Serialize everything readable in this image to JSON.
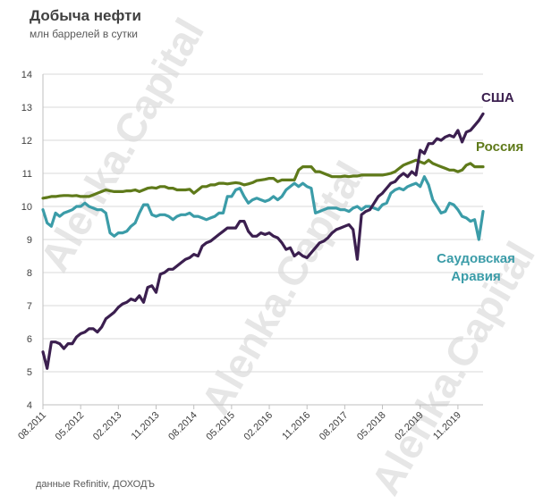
{
  "header": {
    "title": "Добыча нефти",
    "subtitle": "млн баррелей в сутки"
  },
  "footer": {
    "source": "данные Refinitiv, ДОХОДЪ"
  },
  "watermark_text": "Alenka.Capital",
  "chart_data": {
    "type": "line",
    "title": "Добыча нефти",
    "subtitle": "млн баррелей в сутки",
    "xlabel": "",
    "ylabel": "",
    "ylim": [
      4,
      14
    ],
    "yticks": [
      4,
      5,
      6,
      7,
      8,
      9,
      10,
      11,
      12,
      13,
      14
    ],
    "xlim_months": [
      "08.2011",
      "11.2019"
    ],
    "xtick_labels": [
      "08.2011",
      "05.2012",
      "02.2013",
      "11.2013",
      "08.2014",
      "05.2015",
      "02.2016",
      "11.2016",
      "08.2017",
      "05.2018",
      "02.2019",
      "11.2019"
    ],
    "grid": "horizontal",
    "legend": "inline labels at right",
    "series": [
      {
        "name": "США",
        "color": "#3b1f4f",
        "values": [
          5.6,
          5.1,
          5.9,
          5.9,
          5.85,
          5.7,
          5.85,
          5.85,
          6.05,
          6.15,
          6.2,
          6.3,
          6.3,
          6.2,
          6.35,
          6.6,
          6.7,
          6.8,
          6.95,
          7.05,
          7.1,
          7.2,
          7.15,
          7.3,
          7.1,
          7.55,
          7.6,
          7.4,
          7.95,
          8.0,
          8.1,
          8.1,
          8.2,
          8.3,
          8.4,
          8.45,
          8.55,
          8.5,
          8.8,
          8.9,
          8.95,
          9.05,
          9.15,
          9.25,
          9.35,
          9.35,
          9.35,
          9.55,
          9.55,
          9.25,
          9.1,
          9.1,
          9.2,
          9.15,
          9.2,
          9.1,
          9.05,
          8.9,
          8.7,
          8.75,
          8.5,
          8.6,
          8.5,
          8.45,
          8.6,
          8.75,
          8.9,
          8.95,
          9.05,
          9.2,
          9.3,
          9.35,
          9.4,
          9.45,
          9.3,
          8.4,
          9.75,
          9.85,
          9.9,
          10.1,
          10.3,
          10.4,
          10.55,
          10.7,
          10.75,
          10.9,
          11.0,
          10.9,
          11.05,
          10.95,
          11.7,
          11.6,
          11.9,
          11.9,
          12.05,
          12.0,
          12.1,
          12.15,
          12.1,
          12.3,
          11.95,
          12.25,
          12.3,
          12.45,
          12.6,
          12.8
        ]
      },
      {
        "name": "Россия",
        "color": "#5f7a1a",
        "values": [
          10.25,
          10.27,
          10.3,
          10.3,
          10.32,
          10.33,
          10.33,
          10.32,
          10.33,
          10.3,
          10.3,
          10.3,
          10.35,
          10.4,
          10.45,
          10.5,
          10.47,
          10.45,
          10.45,
          10.45,
          10.47,
          10.47,
          10.5,
          10.45,
          10.5,
          10.55,
          10.57,
          10.55,
          10.6,
          10.6,
          10.55,
          10.55,
          10.5,
          10.5,
          10.5,
          10.52,
          10.4,
          10.5,
          10.6,
          10.6,
          10.65,
          10.65,
          10.7,
          10.7,
          10.68,
          10.7,
          10.72,
          10.7,
          10.65,
          10.68,
          10.72,
          10.78,
          10.8,
          10.82,
          10.85,
          10.85,
          10.75,
          10.8,
          10.8,
          10.8,
          10.8,
          11.1,
          11.2,
          11.2,
          11.2,
          11.05,
          11.05,
          11.0,
          10.95,
          10.9,
          10.9,
          10.9,
          10.92,
          10.9,
          10.92,
          10.92,
          10.95,
          10.95,
          10.95,
          10.95,
          10.95,
          10.95,
          10.97,
          11.0,
          11.05,
          11.15,
          11.25,
          11.3,
          11.35,
          11.4,
          11.35,
          11.3,
          11.4,
          11.3,
          11.25,
          11.2,
          11.15,
          11.1,
          11.1,
          11.05,
          11.1,
          11.25,
          11.3,
          11.2,
          11.2,
          11.2
        ]
      },
      {
        "name": "Саудовская Аравия",
        "color": "#3b9ca8",
        "values": [
          9.9,
          9.5,
          9.4,
          9.8,
          9.7,
          9.8,
          9.85,
          9.9,
          10.0,
          10.0,
          10.1,
          10.0,
          9.95,
          9.9,
          9.9,
          9.8,
          9.2,
          9.1,
          9.2,
          9.2,
          9.25,
          9.4,
          9.5,
          9.8,
          10.05,
          10.05,
          9.75,
          9.7,
          9.75,
          9.75,
          9.7,
          9.6,
          9.7,
          9.75,
          9.75,
          9.8,
          9.7,
          9.7,
          9.65,
          9.6,
          9.65,
          9.7,
          9.8,
          9.8,
          10.3,
          10.3,
          10.5,
          10.55,
          10.3,
          10.1,
          10.2,
          10.25,
          10.2,
          10.15,
          10.2,
          10.3,
          10.2,
          10.3,
          10.5,
          10.6,
          10.7,
          10.6,
          10.7,
          10.6,
          10.55,
          9.8,
          9.85,
          9.9,
          9.95,
          9.95,
          9.95,
          9.9,
          9.9,
          9.85,
          9.95,
          10.0,
          9.9,
          10.0,
          10.0,
          9.95,
          9.9,
          10.05,
          10.1,
          10.4,
          10.5,
          10.55,
          10.5,
          10.6,
          10.65,
          10.7,
          10.6,
          10.9,
          10.65,
          10.2,
          10.0,
          9.8,
          9.85,
          10.1,
          10.05,
          9.9,
          9.7,
          9.65,
          9.55,
          9.6,
          9.0,
          9.85
        ]
      }
    ]
  }
}
